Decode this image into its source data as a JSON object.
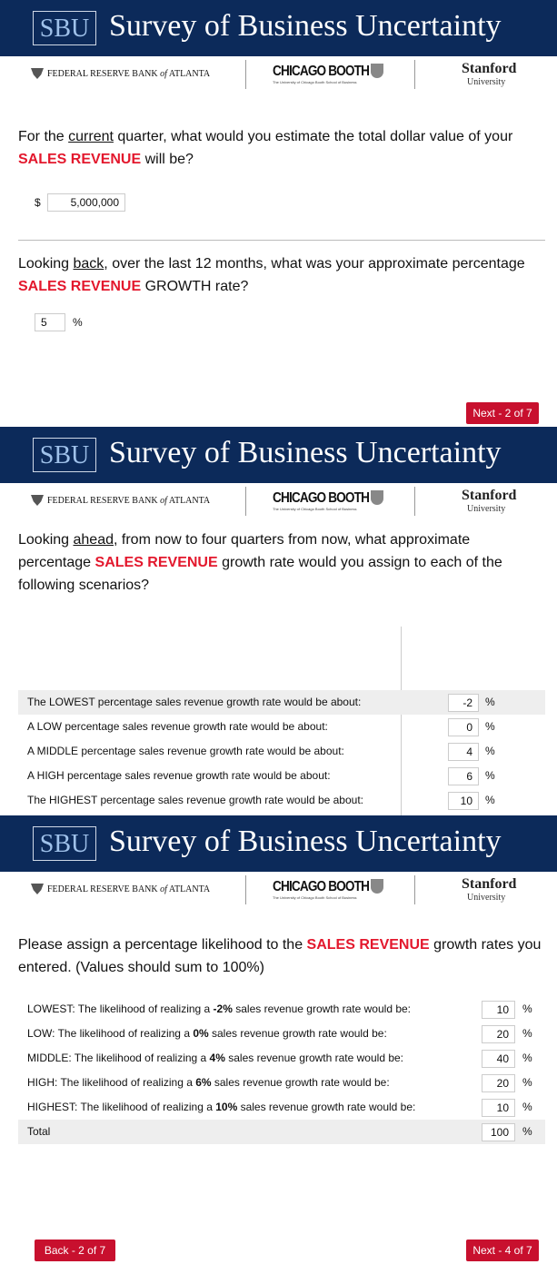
{
  "header": {
    "logo": "SBU",
    "title": "Survey of Business Uncertainty",
    "fed": [
      "FEDERAL RESERVE BANK ",
      "of",
      " ATLANTA"
    ],
    "booth": "CHICAGO BOOTH",
    "booth_sub": "The University of Chicago Booth School of Business",
    "stanford": "Stanford",
    "stanford_sub": "University"
  },
  "screens": [
    {
      "questions": [
        {
          "text": [
            "For the ",
            "current",
            " quarter, what would you estimate the total dollar value of your ",
            "SALES REVENUE",
            " will be?"
          ],
          "prefix": "$",
          "answer": "5,000,000"
        },
        {
          "text": [
            "Looking ",
            "back",
            ", over the last 12 months, what was your approximate percentage ",
            "SALES REVENUE",
            " GROWTH rate?"
          ],
          "answer": "5",
          "suffix": "%"
        }
      ],
      "next": "Next - 2 of 7"
    },
    {
      "question": [
        "Looking ",
        "ahead",
        ", from now to four quarters from now, what approximate percentage ",
        "SALES REVENUE",
        "  growth rate would you assign to each of the following scenarios?"
      ],
      "rows": [
        {
          "label": "The LOWEST percentage sales revenue growth rate would be about:",
          "answer": "-2",
          "suffix": "%"
        },
        {
          "label": "A LOW percentage sales revenue growth rate would be about:",
          "answer": "0",
          "suffix": "%"
        },
        {
          "label": "A MIDDLE percentage sales revenue growth rate would be about:",
          "answer": "4",
          "suffix": "%"
        },
        {
          "label": "A HIGH percentage sales revenue growth rate would be about:",
          "answer": "6",
          "suffix": "%"
        },
        {
          "label": "The HIGHEST percentage sales revenue growth rate would be about:",
          "answer": "10",
          "suffix": "%"
        }
      ]
    },
    {
      "question": [
        "Please assign a percentage likelihood to the ",
        "SALES REVENUE",
        " growth rates you entered.  (Values should sum to 100%)"
      ],
      "rows": [
        {
          "label": [
            "LOWEST: The likelihood of realizing a ",
            "-2%",
            " sales revenue growth rate would be:"
          ],
          "answer": "10",
          "suffix": "%"
        },
        {
          "label": [
            "LOW: The likelihood of realizing a ",
            "0%",
            " sales revenue growth rate would be:"
          ],
          "answer": "20",
          "suffix": "%"
        },
        {
          "label": [
            "MIDDLE: The likelihood of realizing a ",
            "4%",
            " sales revenue growth rate would be:"
          ],
          "answer": "40",
          "suffix": "%"
        },
        {
          "label": [
            "HIGH: The likelihood of realizing a ",
            "6%",
            " sales revenue growth rate would be:"
          ],
          "answer": "20",
          "suffix": "%"
        },
        {
          "label": [
            "HIGHEST: The likelihood of realizing a ",
            "10%",
            " sales revenue growth rate would be:"
          ],
          "answer": "10",
          "suffix": "%"
        },
        {
          "label": [
            "Total"
          ],
          "answer": "100",
          "suffix": "%"
        }
      ],
      "back": "Back - 2 of 7",
      "next": "Next - 4 of 7"
    }
  ]
}
